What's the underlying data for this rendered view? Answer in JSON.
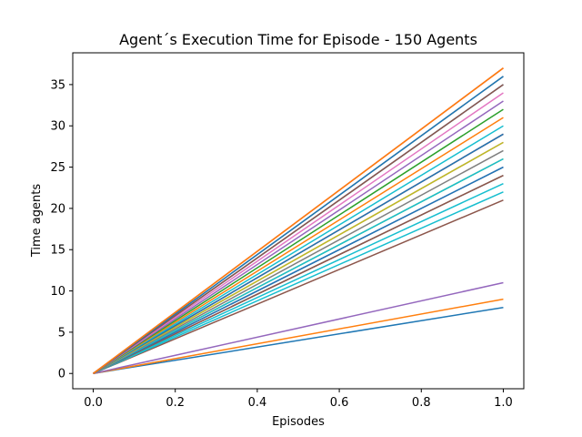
{
  "chart_data": {
    "type": "line",
    "title": "Agent´s Execution Time for Episode - 150 Agents",
    "xlabel": "Episodes",
    "ylabel": "Time agents",
    "xlim": [
      -0.05,
      1.05
    ],
    "ylim": [
      -1.85,
      38.85
    ],
    "x_ticks": [
      "0.0",
      "0.2",
      "0.4",
      "0.6",
      "0.8",
      "1.0"
    ],
    "y_ticks": [
      "0",
      "5",
      "10",
      "15",
      "20",
      "25",
      "30",
      "35"
    ],
    "grid": false,
    "legend": "none",
    "x": [
      0,
      1
    ],
    "series": [
      {
        "values": [
          0,
          8
        ],
        "color": "#1f77b4"
      },
      {
        "values": [
          0,
          9
        ],
        "color": "#ff7f0e"
      },
      {
        "values": [
          0,
          11
        ],
        "color": "#9467bd"
      },
      {
        "values": [
          0,
          21
        ],
        "color": "#8c564b"
      },
      {
        "values": [
          0,
          22
        ],
        "color": "#17becf"
      },
      {
        "values": [
          0,
          23
        ],
        "color": "#17becf"
      },
      {
        "values": [
          0,
          24
        ],
        "color": "#7f7f7f"
      },
      {
        "values": [
          0,
          24
        ],
        "color": "#8c564b"
      },
      {
        "values": [
          0,
          25
        ],
        "color": "#9467bd"
      },
      {
        "values": [
          0,
          25
        ],
        "color": "#1f77b4"
      },
      {
        "values": [
          0,
          26
        ],
        "color": "#bcbd22"
      },
      {
        "values": [
          0,
          26
        ],
        "color": "#17becf"
      },
      {
        "values": [
          0,
          27
        ],
        "color": "#7f7f7f"
      },
      {
        "values": [
          0,
          28
        ],
        "color": "#e377c2"
      },
      {
        "values": [
          0,
          28
        ],
        "color": "#bcbd22"
      },
      {
        "values": [
          0,
          29
        ],
        "color": "#d62728"
      },
      {
        "values": [
          0,
          29
        ],
        "color": "#1f77b4"
      },
      {
        "values": [
          0,
          30
        ],
        "color": "#17becf"
      },
      {
        "values": [
          0,
          31
        ],
        "color": "#ff7f0e"
      },
      {
        "values": [
          0,
          32
        ],
        "color": "#2ca02c"
      },
      {
        "values": [
          0,
          33
        ],
        "color": "#9467bd"
      },
      {
        "values": [
          0,
          34
        ],
        "color": "#e377c2"
      },
      {
        "values": [
          0,
          35
        ],
        "color": "#1f77b4"
      },
      {
        "values": [
          0,
          35
        ],
        "color": "#8c564b"
      },
      {
        "values": [
          0,
          36
        ],
        "color": "#7f7f7f"
      },
      {
        "values": [
          0,
          36
        ],
        "color": "#1f77b4"
      },
      {
        "values": [
          0,
          37
        ],
        "color": "#d62728"
      },
      {
        "values": [
          0,
          37
        ],
        "color": "#ff7f0e"
      }
    ]
  }
}
